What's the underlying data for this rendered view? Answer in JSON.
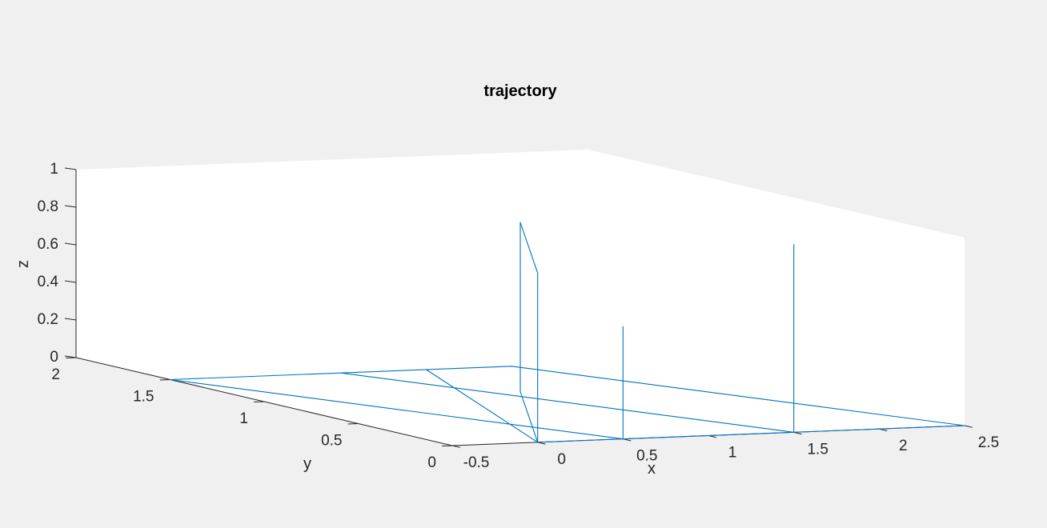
{
  "chart_data": {
    "type": "line",
    "projection": "3d",
    "title": "trajectory",
    "xlabel": "x",
    "ylabel": "y",
    "zlabel": "z",
    "xlim": [
      -0.5,
      2.5
    ],
    "ylim": [
      0,
      2
    ],
    "zlim": [
      0,
      1
    ],
    "xticks": [
      -0.5,
      0,
      0.5,
      1,
      1.5,
      2,
      2.5
    ],
    "xtick_labels": [
      "-0.5",
      "0",
      "0.5",
      "1",
      "1.5",
      "2",
      "2.5"
    ],
    "yticks": [
      0,
      0.5,
      1,
      1.5,
      2
    ],
    "ytick_labels": [
      "0",
      "0.5",
      "1",
      "1.5",
      "2"
    ],
    "zticks": [
      0,
      0.2,
      0.4,
      0.6,
      0.8,
      1
    ],
    "ztick_labels": [
      "0",
      "0.2",
      "0.4",
      "0.6",
      "0.8",
      "1"
    ],
    "grid": false,
    "series": [
      {
        "color": "#0072bd",
        "x": [
          0.5,
          0.5,
          -0.5,
          -0.5,
          1.0,
          1.0,
          0.0,
          0.0,
          1.0,
          1.0,
          0.0,
          0.0,
          2.5,
          2.5,
          1.5,
          1.5,
          0.5,
          0.5,
          1.5,
          1.5
        ],
        "y": [
          0.0,
          0.0,
          1.5,
          1.5,
          1.5,
          1.5,
          0.0,
          0.0,
          1.0,
          1.0,
          0.0,
          0.0,
          0.0,
          0.0,
          1.5,
          1.5,
          1.5,
          1.5,
          0.0,
          0.0
        ],
        "z": [
          0.6,
          0.0,
          0.0,
          0.0,
          0.0,
          0.0,
          0.0,
          0.9,
          0.9,
          0.0,
          0.0,
          0.0,
          0.0,
          0.0,
          0.0,
          0.0,
          0.0,
          0.0,
          0.0,
          1.0
        ]
      }
    ]
  }
}
